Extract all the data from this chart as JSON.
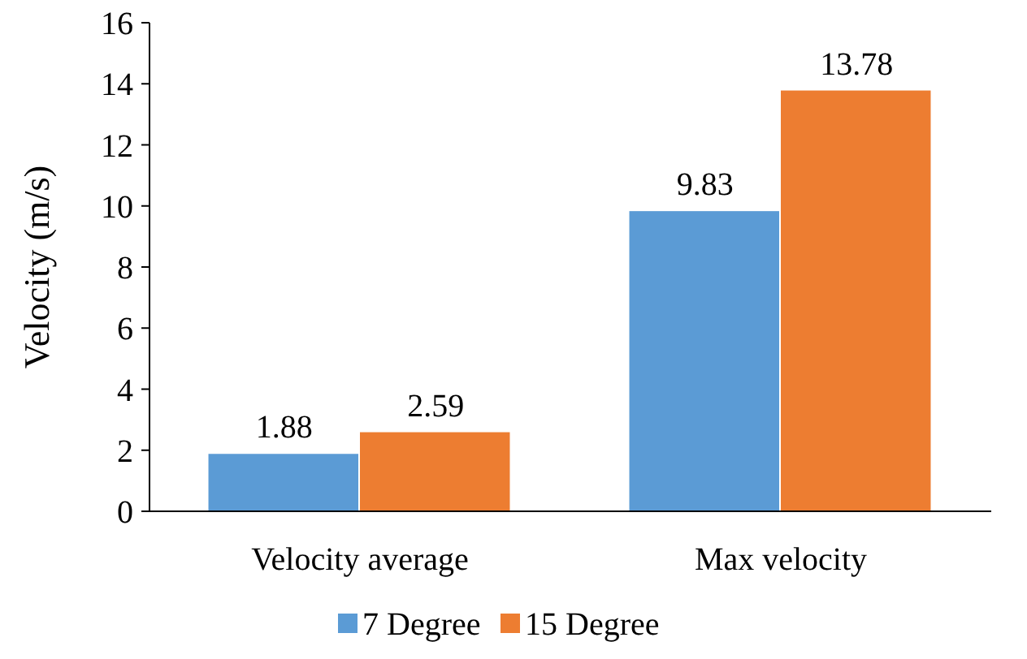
{
  "chart_data": {
    "type": "bar",
    "ylabel": "Velocity (m/s)",
    "categories": [
      "Velocity average",
      "Max velocity"
    ],
    "series": [
      {
        "name": "7 Degree",
        "color": "#5b9bd5",
        "values": [
          1.88,
          9.83
        ]
      },
      {
        "name": "15 Degree",
        "color": "#ed7d31",
        "values": [
          2.59,
          13.78
        ]
      }
    ],
    "ylim": [
      0,
      16
    ],
    "yticks": [
      0,
      2,
      4,
      6,
      8,
      10,
      12,
      14,
      16
    ],
    "data_labels": true,
    "legend": "bottom",
    "grid": false
  }
}
